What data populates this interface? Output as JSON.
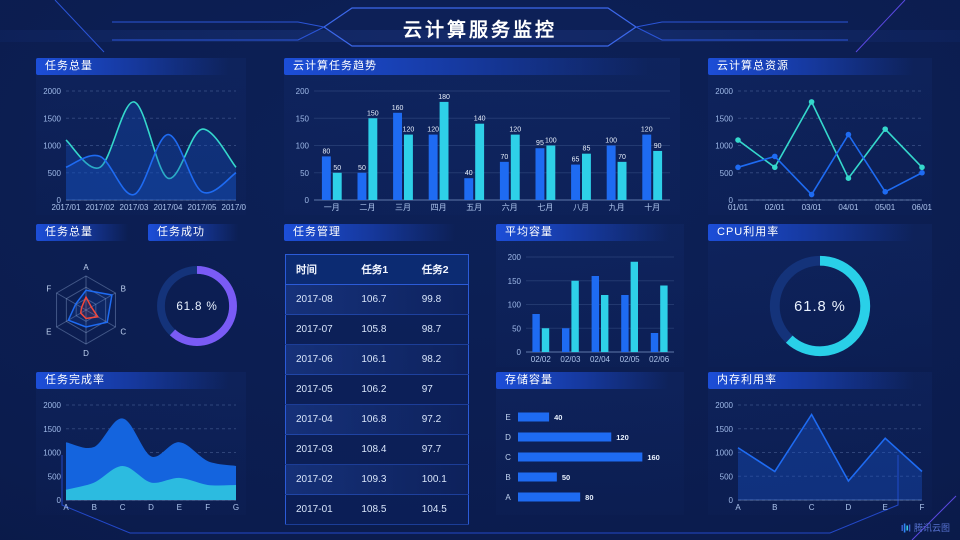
{
  "header": {
    "title": "云计算服务监控"
  },
  "watermark": {
    "text": "腾讯云图"
  },
  "gauge_value_percent": 61.8,
  "chart_data": [
    {
      "id": "task-total-area",
      "type": "area",
      "title": "任务总量",
      "smooth": true,
      "x": [
        "2017/01",
        "2017/02",
        "2017/03",
        "2017/04",
        "2017/05",
        "2017/06"
      ],
      "series": [
        {
          "name": "series-cyan",
          "color": "#35D8CC",
          "fill": "rgba(23,80,190,0.32)",
          "values": [
            1100,
            600,
            1800,
            400,
            1300,
            600
          ]
        },
        {
          "name": "series-blue",
          "color": "#1E6BF2",
          "fill": "rgba(23,80,190,0.32)",
          "values": [
            600,
            800,
            100,
            1200,
            150,
            500
          ]
        }
      ],
      "ylim": [
        0,
        2000
      ],
      "yticks": [
        0,
        500,
        1000,
        1500,
        2000
      ],
      "grid": "dashed",
      "legend": "none"
    },
    {
      "id": "task-trend-bar",
      "type": "bar",
      "title": "云计算任务趋势",
      "labels": true,
      "categories": [
        "一月",
        "二月",
        "三月",
        "四月",
        "五月",
        "六月",
        "七月",
        "八月",
        "九月",
        "十月"
      ],
      "series": [
        {
          "name": "series-blue",
          "color": "#1E6BF2",
          "values": [
            80,
            50,
            160,
            120,
            40,
            70,
            95,
            65,
            100,
            120
          ]
        },
        {
          "name": "series-cyan",
          "color": "#2ED0E8",
          "values": [
            50,
            150,
            120,
            180,
            140,
            120,
            100,
            85,
            70,
            90
          ]
        }
      ],
      "ylim": [
        0,
        200
      ],
      "yticks": [
        0,
        50,
        100,
        150,
        200
      ],
      "grid": "solid",
      "legend": "none"
    },
    {
      "id": "resource-line",
      "type": "line",
      "title": "云计算总资源",
      "markers": true,
      "smooth": false,
      "x": [
        "01/01",
        "02/01",
        "03/01",
        "04/01",
        "05/01",
        "06/01"
      ],
      "series": [
        {
          "name": "series-cyan",
          "color": "#35D8CC",
          "values": [
            1100,
            600,
            1800,
            400,
            1300,
            600
          ]
        },
        {
          "name": "series-blue",
          "color": "#1E6BF2",
          "values": [
            600,
            800,
            100,
            1200,
            150,
            500
          ]
        }
      ],
      "ylim": [
        0,
        2000
      ],
      "yticks": [
        0,
        500,
        1000,
        1500,
        2000
      ],
      "grid": "dashed",
      "legend": "none"
    },
    {
      "id": "task-radar",
      "type": "radar",
      "title": "任务总量",
      "axes": [
        "A",
        "B",
        "C",
        "D",
        "E",
        "F"
      ],
      "max": 100,
      "levels": 3,
      "series": [
        {
          "name": "series-blue",
          "color": "#1E6BF2",
          "values": [
            58,
            88,
            72,
            50,
            60,
            35
          ]
        },
        {
          "name": "series-red",
          "color": "#F0483C",
          "values": [
            38,
            18,
            40,
            25,
            18,
            15
          ]
        }
      ]
    },
    {
      "id": "task-success-gauge",
      "type": "donut",
      "title": "任务成功",
      "value": 61.8,
      "label": "61.8 %",
      "color": "#7A5BF5",
      "track": "#14337A"
    },
    {
      "id": "task-table",
      "type": "table",
      "title": "任务管理",
      "columns": [
        "时间",
        "任务1",
        "任务2"
      ],
      "rows": [
        [
          "2017-08",
          "106.7",
          "99.8"
        ],
        [
          "2017-07",
          "105.8",
          "98.7"
        ],
        [
          "2017-06",
          "106.1",
          "98.2"
        ],
        [
          "2017-05",
          "106.2",
          "97"
        ],
        [
          "2017-04",
          "106.8",
          "97.2"
        ],
        [
          "2017-03",
          "108.4",
          "97.7"
        ],
        [
          "2017-02",
          "109.3",
          "100.1"
        ],
        [
          "2017-01",
          "108.5",
          "104.5"
        ]
      ]
    },
    {
      "id": "avg-capacity-bar",
      "type": "bar",
      "title": "平均容量",
      "labels": false,
      "categories": [
        "02/02",
        "02/03",
        "02/04",
        "02/05",
        "02/06"
      ],
      "series": [
        {
          "name": "series-blue",
          "color": "#1E6BF2",
          "values": [
            80,
            50,
            160,
            120,
            40
          ]
        },
        {
          "name": "series-cyan",
          "color": "#2ED0E8",
          "values": [
            50,
            150,
            120,
            190,
            140
          ]
        }
      ],
      "ylim": [
        0,
        200
      ],
      "yticks": [
        0,
        50,
        100,
        150,
        200
      ],
      "grid": "solid",
      "legend": "none"
    },
    {
      "id": "cpu-gauge",
      "type": "donut",
      "title": "CPU利用率",
      "value": 61.8,
      "label": "61.8 %",
      "color": "#29D0E8",
      "track": "#14337A"
    },
    {
      "id": "completion-area",
      "type": "area",
      "title": "任务完成率",
      "smooth": true,
      "x": [
        "A",
        "B",
        "C",
        "D",
        "E",
        "F",
        "G"
      ],
      "series": [
        {
          "name": "series-blue",
          "color": "#1464DE",
          "fill": "#1464DE",
          "values": [
            1200,
            1100,
            1700,
            900,
            1200,
            800,
            700
          ]
        },
        {
          "name": "series-cyan",
          "color": "#2CBBE0",
          "fill": "#2CBBE0",
          "values": [
            200,
            350,
            700,
            350,
            450,
            300,
            300
          ]
        }
      ],
      "ylim": [
        0,
        2000
      ],
      "yticks": [
        0,
        500,
        1000,
        1500,
        2000
      ],
      "grid": "dashed",
      "legend": "none"
    },
    {
      "id": "storage-hbar",
      "type": "hbar",
      "title": "存储容量",
      "categories": [
        "E",
        "D",
        "C",
        "B",
        "A"
      ],
      "values": [
        40,
        120,
        160,
        50,
        80
      ],
      "xmax": 175,
      "color": "#1E6BF2"
    },
    {
      "id": "memory-line",
      "type": "line",
      "title": "内存利用率",
      "smooth": false,
      "markers": false,
      "x": [
        "A",
        "B",
        "C",
        "D",
        "E",
        "F"
      ],
      "series": [
        {
          "name": "series-blue",
          "color": "#1E6BF2",
          "fill": "rgba(25,85,210,0.35)",
          "values": [
            1100,
            600,
            1800,
            400,
            1300,
            600
          ]
        }
      ],
      "ylim": [
        0,
        2000
      ],
      "yticks": [
        0,
        500,
        1000,
        1500,
        2000
      ],
      "grid": "dashed",
      "legend": "none"
    }
  ]
}
